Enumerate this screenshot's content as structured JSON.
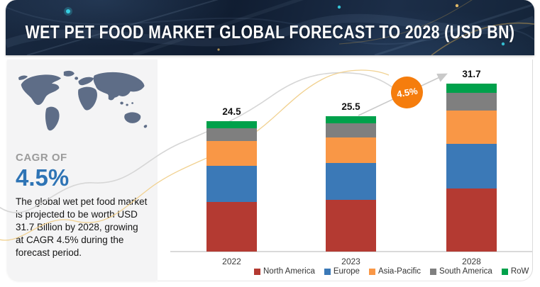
{
  "header": {
    "title": "WET PET FOOD MARKET GLOBAL FORECAST TO 2028 (USD BN)"
  },
  "sidebar": {
    "cagr_label": "CAGR OF",
    "cagr_value": "4.5%",
    "description": "The global wet pet food market is projected to be worth USD 31.7 Billion by 2028, growing at CAGR 4.5% during the forecast period."
  },
  "badge": {
    "label": "4.5%",
    "color": "#F57D0D"
  },
  "chart_data": {
    "type": "bar",
    "stacked": true,
    "title": "WET PET FOOD MARKET GLOBAL FORECAST TO 2028 (USD BN)",
    "unit": "USD BN",
    "categories": [
      "2022",
      "2023",
      "2028"
    ],
    "series": [
      {
        "name": "North America",
        "color": "#B43A32",
        "values": [
          9.3,
          9.7,
          11.9
        ]
      },
      {
        "name": "Europe",
        "color": "#3B79B7",
        "values": [
          6.9,
          7.0,
          8.4
        ]
      },
      {
        "name": "Asia-Pacific",
        "color": "#F99746",
        "values": [
          4.6,
          4.8,
          6.3
        ]
      },
      {
        "name": "South America",
        "color": "#7F7F7F",
        "values": [
          2.4,
          2.6,
          3.3
        ]
      },
      {
        "name": "RoW",
        "color": "#00A14B",
        "values": [
          1.3,
          1.4,
          1.8
        ]
      }
    ],
    "totals": [
      24.5,
      25.5,
      31.7
    ],
    "annotation": "4.5%",
    "legend_position": "bottom",
    "grid": false
  }
}
